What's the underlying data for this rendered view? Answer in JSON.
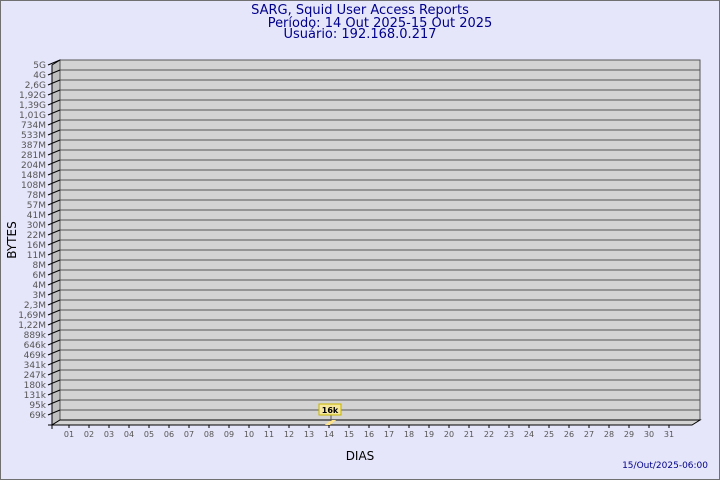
{
  "header": {
    "title": "SARG, Squid User Access Reports",
    "period": "Período: 14 Out 2025-15 Out 2025",
    "user": "Usuário: 192.168.0.217"
  },
  "footer": {
    "timestamp": "15/Out/2025-06:00"
  },
  "colors": {
    "background": "#e6e6fa",
    "plot": "#d3d3d3",
    "bar": "#ffe38a",
    "text": "#00008b"
  },
  "chart_data": {
    "type": "bar",
    "xlabel": "DIAS",
    "ylabel": "BYTES",
    "x_ticks": [
      "01",
      "02",
      "03",
      "04",
      "05",
      "06",
      "07",
      "08",
      "09",
      "10",
      "11",
      "12",
      "13",
      "14",
      "15",
      "16",
      "17",
      "18",
      "19",
      "20",
      "21",
      "22",
      "23",
      "24",
      "25",
      "26",
      "27",
      "28",
      "29",
      "30",
      "31"
    ],
    "y_ticks": [
      "5G",
      "4G",
      "2,6G",
      "1,92G",
      "1,39G",
      "1,01G",
      "734M",
      "533M",
      "387M",
      "281M",
      "204M",
      "148M",
      "108M",
      "78M",
      "57M",
      "41M",
      "30M",
      "22M",
      "16M",
      "11M",
      "8M",
      "6M",
      "4M",
      "3M",
      "2,3M",
      "1,69M",
      "1,22M",
      "889k",
      "646k",
      "469k",
      "341k",
      "247k",
      "180k",
      "131k",
      "95k",
      "69k"
    ],
    "y_scale": "log",
    "grid": true,
    "bars": [
      {
        "x": "14",
        "value": 16000,
        "label": "16k"
      }
    ]
  }
}
